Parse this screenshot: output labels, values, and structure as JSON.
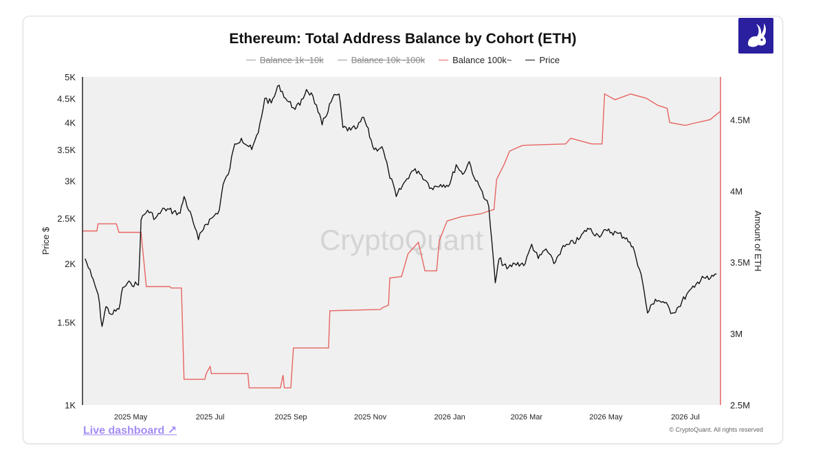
{
  "chart_title": "Ethereum: Total Address Balance by Cohort (ETH)",
  "watermark": "CryptoQuant",
  "live_link": "Live dashboard ↗",
  "copyright": "© CryptoQuant. All rights reserved",
  "legend": [
    {
      "label": "Balance 1k~10k",
      "color": "#9a9a9a",
      "hidden": true
    },
    {
      "label": "Balance 10k~100k",
      "color": "#9a9a9a",
      "hidden": true
    },
    {
      "label": "Balance 100k~",
      "color": "#e8635f",
      "hidden": false
    },
    {
      "label": "Price",
      "color": "#111111",
      "hidden": false
    }
  ],
  "chart_data": {
    "type": "line",
    "title": "Ethereum: Total Address Balance by Cohort (ETH)",
    "xlabel": "",
    "ylabel_left": "Price $",
    "ylabel_right": "Amount of ETH",
    "x_ticks": [
      "2025 May",
      "2025 Jul",
      "2025 Sep",
      "2025 Nov",
      "2026 Jan",
      "2026 Mar",
      "2026 May",
      "2026 Jul"
    ],
    "x_range": [
      "2025-03-25",
      "2026-07-28"
    ],
    "y_left_scale": "log",
    "y_left_range": [
      1000,
      5000
    ],
    "y_left_ticks": [
      {
        "label": "1K",
        "value": 1000
      },
      {
        "label": "1.5K",
        "value": 1500
      },
      {
        "label": "2K",
        "value": 2000
      },
      {
        "label": "2.5K",
        "value": 2500
      },
      {
        "label": "3K",
        "value": 3000
      },
      {
        "label": "3.5K",
        "value": 3500
      },
      {
        "label": "4K",
        "value": 4000
      },
      {
        "label": "4.5K",
        "value": 4500
      },
      {
        "label": "5K",
        "value": 5000
      }
    ],
    "y_right_range": [
      2500000,
      4800000
    ],
    "y_right_ticks": [
      {
        "label": "2.5M",
        "value": 2500000
      },
      {
        "label": "3M",
        "value": 3000000
      },
      {
        "label": "3.5M",
        "value": 3500000
      },
      {
        "label": "4M",
        "value": 4000000
      },
      {
        "label": "4.5M",
        "value": 4500000
      }
    ],
    "grid": false,
    "legend_position": "top-center",
    "colors": {
      "price": "#111111",
      "balance_100k": "#e8635f",
      "plot_bg": "#f0f0f0"
    },
    "series": [
      {
        "name": "Price",
        "axis": "left",
        "points": [
          [
            "2025-03-27",
            2050
          ],
          [
            "2025-04-01",
            1880
          ],
          [
            "2025-04-06",
            1720
          ],
          [
            "2025-04-09",
            1470
          ],
          [
            "2025-04-12",
            1620
          ],
          [
            "2025-04-16",
            1560
          ],
          [
            "2025-04-22",
            1600
          ],
          [
            "2025-04-25",
            1780
          ],
          [
            "2025-05-01",
            1820
          ],
          [
            "2025-05-07",
            1800
          ],
          [
            "2025-05-09",
            2480
          ],
          [
            "2025-05-14",
            2600
          ],
          [
            "2025-05-20",
            2500
          ],
          [
            "2025-05-27",
            2620
          ],
          [
            "2025-06-03",
            2580
          ],
          [
            "2025-06-08",
            2560
          ],
          [
            "2025-06-11",
            2780
          ],
          [
            "2025-06-18",
            2450
          ],
          [
            "2025-06-22",
            2250
          ],
          [
            "2025-06-27",
            2420
          ],
          [
            "2025-07-03",
            2510
          ],
          [
            "2025-07-08",
            2600
          ],
          [
            "2025-07-11",
            2950
          ],
          [
            "2025-07-15",
            3100
          ],
          [
            "2025-07-20",
            3600
          ],
          [
            "2025-07-25",
            3700
          ],
          [
            "2025-08-02",
            3500
          ],
          [
            "2025-08-07",
            3800
          ],
          [
            "2025-08-12",
            4500
          ],
          [
            "2025-08-17",
            4400
          ],
          [
            "2025-08-23",
            4800
          ],
          [
            "2025-08-28",
            4500
          ],
          [
            "2025-09-03",
            4300
          ],
          [
            "2025-09-08",
            4350
          ],
          [
            "2025-09-13",
            4700
          ],
          [
            "2025-09-18",
            4550
          ],
          [
            "2025-09-22",
            4200
          ],
          [
            "2025-09-25",
            3950
          ],
          [
            "2025-10-03",
            4500
          ],
          [
            "2025-10-08",
            4600
          ],
          [
            "2025-10-11",
            3900
          ],
          [
            "2025-10-17",
            3850
          ],
          [
            "2025-10-22",
            3900
          ],
          [
            "2025-10-27",
            4100
          ],
          [
            "2025-11-04",
            3500
          ],
          [
            "2025-11-10",
            3550
          ],
          [
            "2025-11-15",
            3150
          ],
          [
            "2025-11-21",
            2780
          ],
          [
            "2025-11-28",
            3000
          ],
          [
            "2025-12-03",
            3150
          ],
          [
            "2025-12-08",
            3150
          ],
          [
            "2025-12-14",
            3000
          ],
          [
            "2025-12-18",
            2900
          ],
          [
            "2025-12-25",
            2950
          ],
          [
            "2026-01-01",
            2950
          ],
          [
            "2026-01-06",
            3250
          ],
          [
            "2026-01-11",
            3100
          ],
          [
            "2026-01-16",
            3300
          ],
          [
            "2026-01-21",
            3000
          ],
          [
            "2026-01-26",
            2850
          ],
          [
            "2026-01-31",
            2650
          ],
          [
            "2026-02-05",
            1820
          ],
          [
            "2026-02-08",
            2050
          ],
          [
            "2026-02-14",
            1950
          ],
          [
            "2026-02-20",
            2000
          ],
          [
            "2026-02-28",
            2000
          ],
          [
            "2026-03-05",
            2200
          ],
          [
            "2026-03-10",
            2050
          ],
          [
            "2026-03-16",
            2150
          ],
          [
            "2026-03-22",
            2000
          ],
          [
            "2026-03-28",
            2150
          ],
          [
            "2026-04-03",
            2200
          ],
          [
            "2026-04-10",
            2250
          ],
          [
            "2026-04-17",
            2380
          ],
          [
            "2026-04-25",
            2300
          ],
          [
            "2026-05-02",
            2350
          ],
          [
            "2026-05-10",
            2320
          ],
          [
            "2026-05-17",
            2270
          ],
          [
            "2026-05-23",
            2120
          ],
          [
            "2026-05-28",
            1900
          ],
          [
            "2026-06-02",
            1570
          ],
          [
            "2026-06-08",
            1680
          ],
          [
            "2026-06-15",
            1650
          ],
          [
            "2026-06-21",
            1570
          ],
          [
            "2026-06-26",
            1620
          ],
          [
            "2026-07-02",
            1720
          ],
          [
            "2026-07-08",
            1780
          ],
          [
            "2026-07-14",
            1880
          ],
          [
            "2026-07-19",
            1850
          ],
          [
            "2026-07-25",
            1900
          ]
        ]
      },
      {
        "name": "Balance 100k~",
        "axis": "right",
        "points": [
          [
            "2025-03-25",
            3720000
          ],
          [
            "2025-04-05",
            3720000
          ],
          [
            "2025-04-06",
            3770000
          ],
          [
            "2025-04-20",
            3770000
          ],
          [
            "2025-04-22",
            3710000
          ],
          [
            "2025-05-09",
            3710000
          ],
          [
            "2025-05-13",
            3330000
          ],
          [
            "2025-05-31",
            3330000
          ],
          [
            "2025-06-01",
            3320000
          ],
          [
            "2025-06-09",
            3320000
          ],
          [
            "2025-06-11",
            2680000
          ],
          [
            "2025-06-27",
            2680000
          ],
          [
            "2025-06-28",
            2720000
          ],
          [
            "2025-07-01",
            2770000
          ],
          [
            "2025-07-02",
            2720000
          ],
          [
            "2025-07-30",
            2720000
          ],
          [
            "2025-07-31",
            2620000
          ],
          [
            "2025-08-24",
            2620000
          ],
          [
            "2025-08-26",
            2710000
          ],
          [
            "2025-08-27",
            2620000
          ],
          [
            "2025-09-01",
            2620000
          ],
          [
            "2025-09-03",
            2900000
          ],
          [
            "2025-09-30",
            2900000
          ],
          [
            "2025-10-01",
            3160000
          ],
          [
            "2025-11-09",
            3170000
          ],
          [
            "2025-11-10",
            3180000
          ],
          [
            "2025-11-15",
            3200000
          ],
          [
            "2025-11-16",
            3390000
          ],
          [
            "2025-11-25",
            3400000
          ],
          [
            "2025-11-30",
            3560000
          ],
          [
            "2025-12-08",
            3640000
          ],
          [
            "2025-12-10",
            3560000
          ],
          [
            "2025-12-13",
            3440000
          ],
          [
            "2025-12-22",
            3440000
          ],
          [
            "2025-12-24",
            3650000
          ],
          [
            "2025-12-30",
            3790000
          ],
          [
            "2026-01-10",
            3820000
          ],
          [
            "2026-01-25",
            3840000
          ],
          [
            "2026-01-31",
            3860000
          ],
          [
            "2026-02-04",
            3870000
          ],
          [
            "2026-02-06",
            4080000
          ],
          [
            "2026-02-12",
            4190000
          ],
          [
            "2026-02-16",
            4280000
          ],
          [
            "2026-02-26",
            4320000
          ],
          [
            "2026-03-31",
            4330000
          ],
          [
            "2026-04-04",
            4370000
          ],
          [
            "2026-04-20",
            4330000
          ],
          [
            "2026-04-28",
            4330000
          ],
          [
            "2026-04-30",
            4680000
          ],
          [
            "2026-05-08",
            4640000
          ],
          [
            "2026-05-20",
            4680000
          ],
          [
            "2026-06-01",
            4650000
          ],
          [
            "2026-06-10",
            4600000
          ],
          [
            "2026-06-17",
            4580000
          ],
          [
            "2026-06-19",
            4480000
          ],
          [
            "2026-07-01",
            4460000
          ],
          [
            "2026-07-10",
            4480000
          ],
          [
            "2026-07-20",
            4500000
          ],
          [
            "2026-07-28",
            4560000
          ]
        ]
      }
    ]
  }
}
